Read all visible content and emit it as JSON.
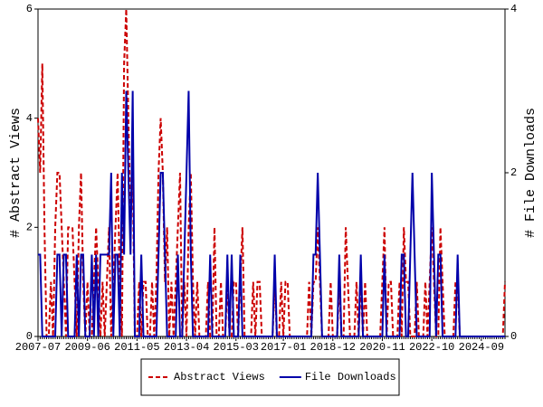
{
  "chart_data": {
    "type": "line",
    "ylabel": "# Abstract Views",
    "y2label": "# File Downloads",
    "categories": [
      "2007-07",
      null,
      null,
      null,
      null,
      null,
      null,
      null,
      null,
      null,
      null,
      null,
      null,
      null,
      null,
      null,
      null,
      null,
      null,
      null,
      null,
      null,
      null,
      "2009-06",
      null,
      null,
      null,
      null,
      null,
      null,
      null,
      null,
      null,
      null,
      null,
      null,
      null,
      null,
      null,
      null,
      null,
      null,
      null,
      null,
      null,
      null,
      "2011-05",
      null,
      null,
      null,
      null,
      null,
      null,
      null,
      null,
      null,
      null,
      null,
      null,
      null,
      null,
      null,
      null,
      null,
      null,
      null,
      null,
      null,
      null,
      "2013-04",
      null,
      null,
      null,
      null,
      null,
      null,
      null,
      null,
      null,
      null,
      null,
      null,
      null,
      null,
      null,
      null,
      null,
      null,
      null,
      null,
      null,
      null,
      "2015-03",
      null,
      null,
      null,
      null,
      null,
      null,
      null,
      null,
      null,
      null,
      null,
      null,
      null,
      null,
      null,
      null,
      null,
      null,
      null,
      null,
      null,
      "2017-01",
      null,
      null,
      null,
      null,
      null,
      null,
      null,
      null,
      null,
      null,
      null,
      null,
      null,
      null,
      null,
      null,
      null,
      null,
      null,
      null,
      null,
      null,
      "2018-12",
      null,
      null,
      null,
      null,
      null,
      null,
      null,
      null,
      null,
      null,
      null,
      null,
      null,
      null,
      null,
      null,
      null,
      null,
      null,
      null,
      null,
      null,
      "2020-11",
      null,
      null,
      null,
      null,
      null,
      null,
      null,
      null,
      null,
      null,
      null,
      null,
      null,
      null,
      null,
      null,
      null,
      null,
      null,
      null,
      null,
      null,
      "2022-10",
      null,
      null,
      null,
      null,
      null,
      null,
      null,
      null,
      null,
      null,
      null,
      null,
      null,
      null,
      null,
      null,
      null,
      null,
      null,
      null,
      null,
      null,
      "2024-09",
      null,
      null,
      null,
      null,
      null,
      null,
      null,
      null,
      null,
      null,
      null
    ],
    "series": [
      {
        "name": "Abstract Views",
        "color": "#cc0000",
        "dash": true,
        "axis": "y",
        "values": [
          4,
          3,
          5,
          2,
          0,
          0,
          1,
          0,
          2,
          3,
          3,
          2,
          1,
          0,
          2,
          2,
          2,
          1,
          0,
          2,
          3,
          1,
          0,
          1,
          0,
          0,
          1,
          2,
          1,
          0,
          1,
          0,
          1,
          2,
          0,
          1,
          2,
          3,
          1,
          0,
          5,
          6,
          4,
          2,
          3,
          0,
          0,
          1,
          0,
          1,
          1,
          0,
          0,
          1,
          0,
          1,
          3,
          4,
          3,
          1,
          2,
          0,
          1,
          0,
          1,
          2,
          3,
          0,
          1,
          0,
          2,
          3,
          1,
          0,
          1,
          0,
          0,
          0,
          0,
          1,
          0,
          0,
          2,
          0,
          0,
          1,
          0,
          0,
          1,
          0,
          0,
          1,
          1,
          0,
          1,
          2,
          0,
          0,
          0,
          0,
          1,
          0,
          1,
          1,
          0,
          0,
          0,
          0,
          0,
          0,
          1,
          0,
          0,
          1,
          0,
          1,
          1,
          0,
          0,
          0,
          0,
          0,
          0,
          0,
          0,
          0,
          1,
          0,
          1,
          1,
          2,
          1,
          0,
          0,
          0,
          0,
          1,
          0,
          0,
          0,
          1,
          0,
          0,
          2,
          1,
          0,
          0,
          0,
          1,
          0,
          1,
          0,
          1,
          0,
          0,
          0,
          0,
          0,
          0,
          0,
          1,
          2,
          0,
          1,
          1,
          0,
          0,
          0,
          1,
          0,
          2,
          1,
          1,
          0,
          0,
          0,
          1,
          0,
          0,
          0,
          1,
          0,
          1,
          2,
          1,
          0,
          0,
          2,
          1,
          0,
          0,
          0,
          0,
          0,
          1,
          1,
          0,
          0,
          0,
          0,
          0,
          0,
          0,
          0,
          0,
          0,
          0,
          0,
          0,
          0,
          0,
          0,
          0,
          0,
          0,
          0,
          0,
          1
        ]
      },
      {
        "name": "File Downloads",
        "color": "#0000aa",
        "dash": false,
        "axis": "y2",
        "values": [
          1,
          1,
          0,
          0,
          0,
          0,
          0,
          0,
          0,
          1,
          1,
          0,
          1,
          1,
          0,
          0,
          0,
          0,
          1,
          0,
          1,
          1,
          0,
          0,
          0,
          1,
          0,
          1,
          0,
          1,
          1,
          1,
          1,
          1,
          2,
          0,
          1,
          1,
          0,
          2,
          1,
          3,
          2,
          1,
          3,
          0,
          0,
          0,
          1,
          0,
          0,
          0,
          0,
          0,
          0,
          0,
          1,
          2,
          2,
          1,
          0,
          0,
          0,
          0,
          0,
          1,
          0,
          0,
          1,
          2,
          3,
          1,
          0,
          0,
          0,
          0,
          0,
          0,
          0,
          0,
          1,
          0,
          0,
          0,
          0,
          0,
          0,
          0,
          1,
          0,
          1,
          0,
          0,
          0,
          1,
          0,
          0,
          0,
          0,
          0,
          0,
          0,
          0,
          0,
          0,
          0,
          0,
          0,
          0,
          0,
          1,
          0,
          0,
          0,
          0,
          0,
          0,
          0,
          0,
          0,
          0,
          0,
          0,
          0,
          0,
          0,
          0,
          0,
          1,
          1,
          2,
          1,
          0,
          0,
          0,
          0,
          0,
          0,
          0,
          0,
          1,
          0,
          0,
          0,
          0,
          0,
          0,
          0,
          0,
          0,
          1,
          0,
          0,
          0,
          0,
          0,
          0,
          0,
          0,
          0,
          0,
          1,
          0,
          0,
          0,
          0,
          0,
          0,
          0,
          1,
          1,
          0,
          0,
          1,
          2,
          1,
          0,
          0,
          0,
          0,
          0,
          0,
          0,
          2,
          1,
          0,
          1,
          1,
          0,
          0,
          0,
          0,
          0,
          0,
          0,
          1,
          0,
          0,
          0,
          0,
          0,
          0,
          0,
          0,
          0,
          0,
          0,
          0,
          0,
          0,
          0,
          0,
          0,
          0,
          0,
          0,
          0,
          0
        ]
      }
    ],
    "ylim": [
      0,
      6
    ],
    "yticks": [
      0,
      2,
      4,
      6
    ],
    "y2lim": [
      0,
      4
    ],
    "y2ticks": [
      0,
      2,
      4
    ],
    "legend": "bottom"
  }
}
